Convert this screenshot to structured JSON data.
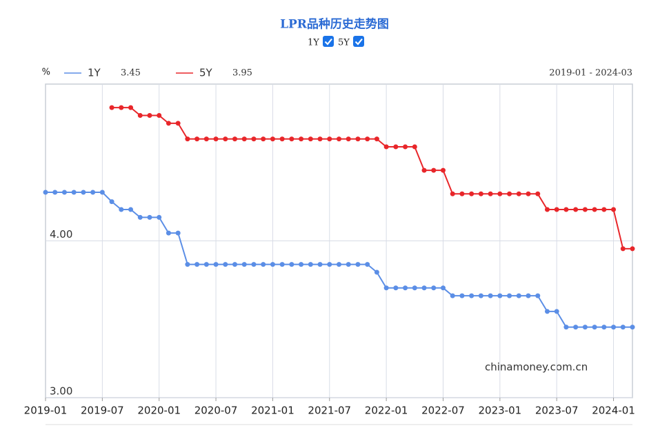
{
  "chart_data": {
    "type": "line",
    "title": "LPR品种历史走势图",
    "y_unit": "%",
    "date_range": "2019-01 - 2024-03",
    "watermark": "chinamoney.com.cn",
    "categories": [
      "2019-01",
      null,
      null,
      null,
      null,
      null,
      "2019-07",
      null,
      null,
      null,
      null,
      null,
      "2020-01",
      null,
      null,
      null,
      null,
      null,
      "2020-07",
      null,
      null,
      null,
      null,
      null,
      "2021-01",
      null,
      null,
      null,
      null,
      null,
      "2021-07",
      null,
      null,
      null,
      null,
      null,
      "2022-01",
      null,
      null,
      null,
      null,
      null,
      "2022-07",
      null,
      null,
      null,
      null,
      null,
      "2023-01",
      null,
      null,
      null,
      null,
      null,
      "2023-07",
      null,
      null,
      null,
      null,
      null,
      "2024-01",
      null,
      null
    ],
    "series": [
      {
        "name": "1Y",
        "color": "#5b8ee6",
        "latest": "3.45",
        "values": [
          4.31,
          4.31,
          4.31,
          4.31,
          4.31,
          4.31,
          4.31,
          4.25,
          4.2,
          4.2,
          4.15,
          4.15,
          4.15,
          4.05,
          4.05,
          3.85,
          3.85,
          3.85,
          3.85,
          3.85,
          3.85,
          3.85,
          3.85,
          3.85,
          3.85,
          3.85,
          3.85,
          3.85,
          3.85,
          3.85,
          3.85,
          3.85,
          3.85,
          3.85,
          3.85,
          3.8,
          3.7,
          3.7,
          3.7,
          3.7,
          3.7,
          3.7,
          3.7,
          3.65,
          3.65,
          3.65,
          3.65,
          3.65,
          3.65,
          3.65,
          3.65,
          3.65,
          3.65,
          3.55,
          3.55,
          3.45,
          3.45,
          3.45,
          3.45,
          3.45,
          3.45,
          3.45,
          3.45
        ]
      },
      {
        "name": "5Y",
        "color": "#e8262a",
        "latest": "3.95",
        "values": [
          null,
          null,
          null,
          null,
          null,
          null,
          null,
          4.85,
          4.85,
          4.85,
          4.8,
          4.8,
          4.8,
          4.75,
          4.75,
          4.65,
          4.65,
          4.65,
          4.65,
          4.65,
          4.65,
          4.65,
          4.65,
          4.65,
          4.65,
          4.65,
          4.65,
          4.65,
          4.65,
          4.65,
          4.65,
          4.65,
          4.65,
          4.65,
          4.65,
          4.65,
          4.6,
          4.6,
          4.6,
          4.6,
          4.45,
          4.45,
          4.45,
          4.3,
          4.3,
          4.3,
          4.3,
          4.3,
          4.3,
          4.3,
          4.3,
          4.3,
          4.3,
          4.2,
          4.2,
          4.2,
          4.2,
          4.2,
          4.2,
          4.2,
          4.2,
          3.95,
          3.95
        ]
      }
    ],
    "ylim": [
      3,
      5
    ],
    "yticks": [
      {
        "value": 3,
        "label": "3.00"
      },
      {
        "value": 4,
        "label": "4.00"
      }
    ],
    "grid": true
  }
}
